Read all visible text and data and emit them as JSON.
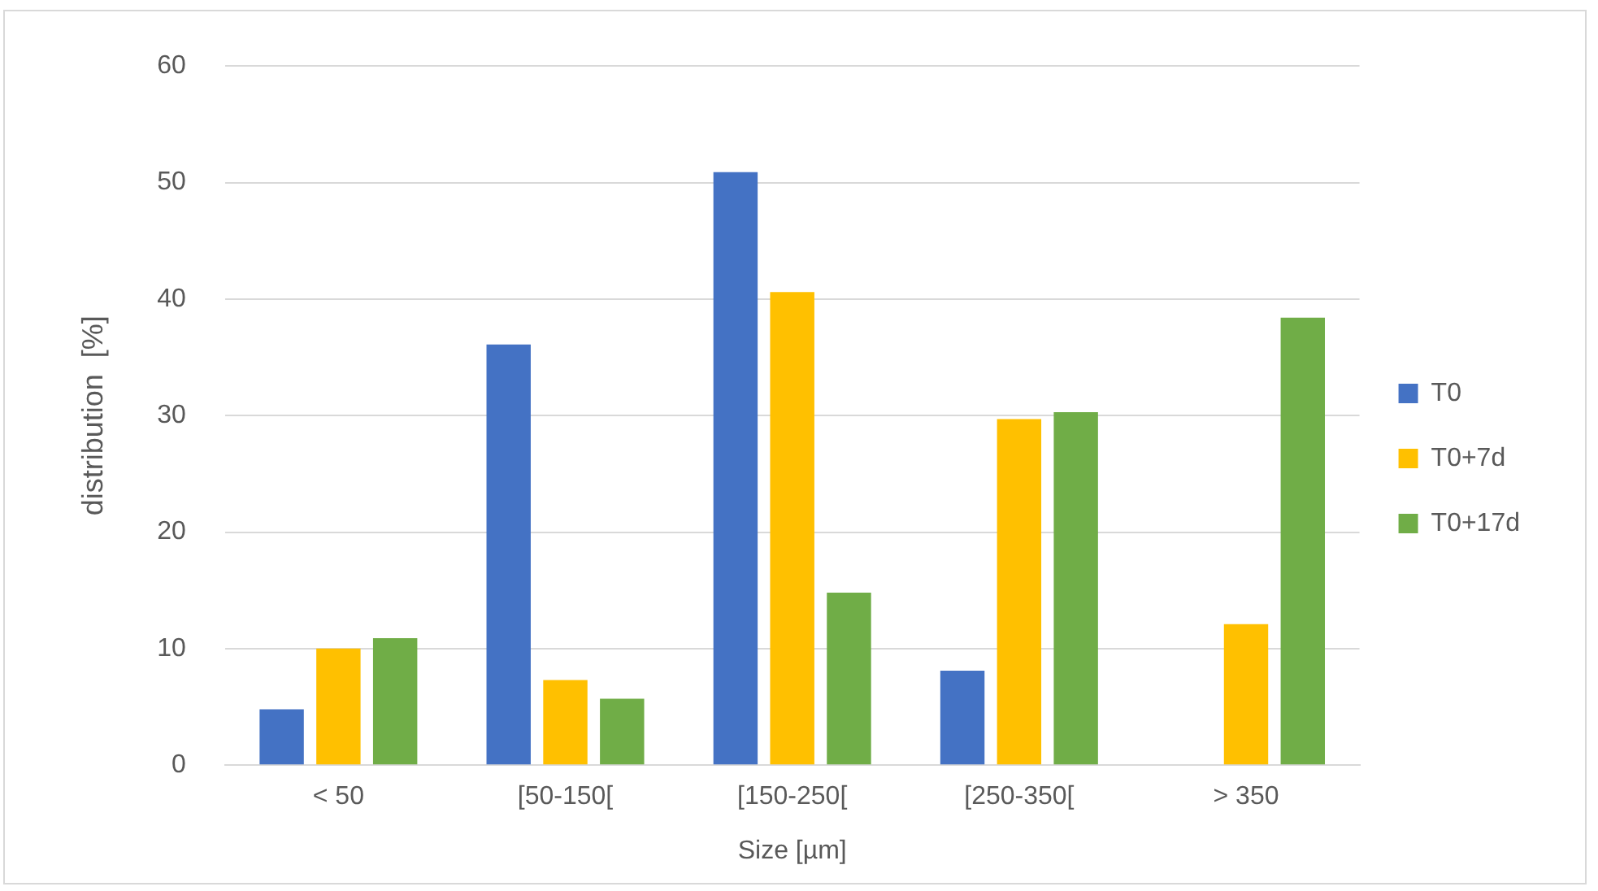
{
  "chart_data": {
    "type": "bar",
    "xlabel": "Size [µm]",
    "ylabel": "distribution  [%]",
    "categories": [
      "< 50",
      "[50-150[",
      "[150-250[",
      "[250-350[",
      "> 350"
    ],
    "series": [
      {
        "name": "T0",
        "color": "#4472c4",
        "values": [
          4.8,
          36.1,
          50.9,
          8.1,
          0
        ]
      },
      {
        "name": "T0+7d",
        "color": "#ffc000",
        "values": [
          10.0,
          7.3,
          40.6,
          29.7,
          12.1
        ]
      },
      {
        "name": "T0+17d",
        "color": "#70ad47",
        "values": [
          10.9,
          5.7,
          14.8,
          30.3,
          38.4
        ]
      }
    ],
    "ylim": [
      0,
      60
    ],
    "yticks": [
      0,
      10,
      20,
      30,
      40,
      50,
      60
    ],
    "grid": "y",
    "legend": "right"
  }
}
